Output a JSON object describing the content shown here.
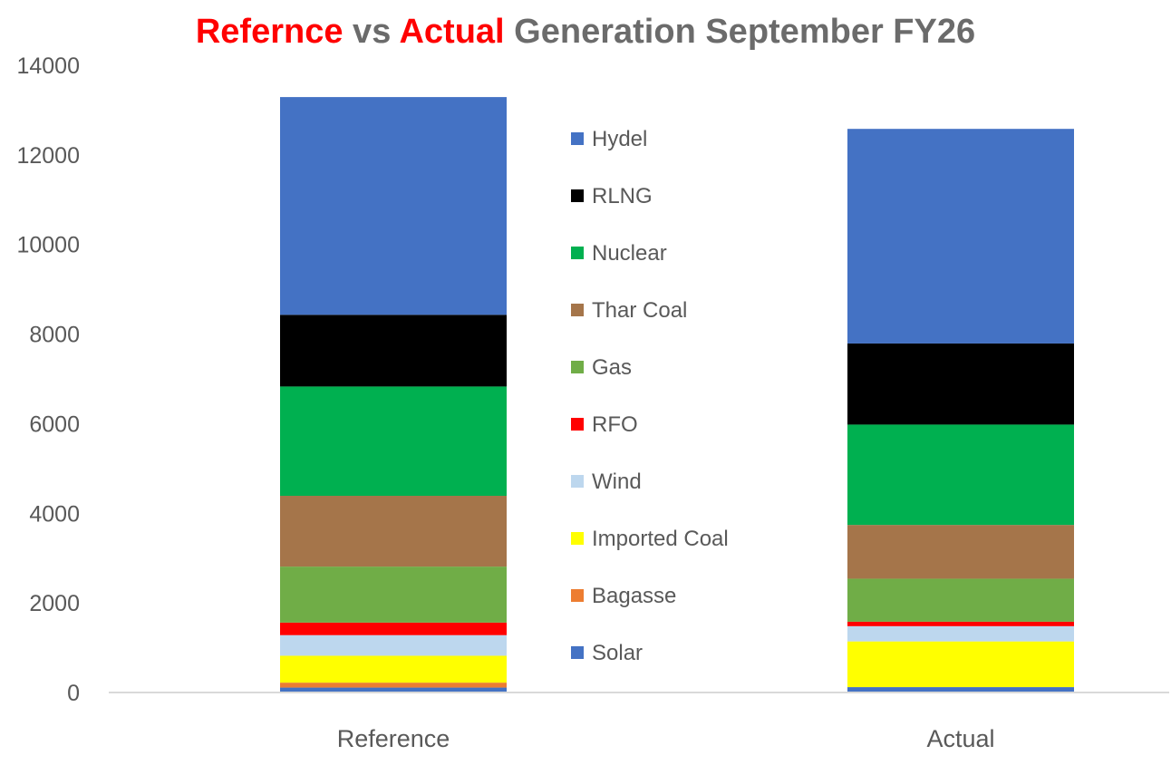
{
  "chart_data": {
    "type": "bar",
    "stacked": true,
    "title_parts": [
      {
        "text": "Refernce",
        "highlight": true
      },
      {
        "text": " vs ",
        "highlight": false
      },
      {
        "text": "Actual",
        "highlight": true
      },
      {
        "text": " Generation September FY26",
        "highlight": false
      }
    ],
    "categories": [
      "Reference",
      "Actual"
    ],
    "ylim": [
      0,
      14000
    ],
    "yticks": [
      0,
      2000,
      4000,
      6000,
      8000,
      10000,
      12000,
      14000
    ],
    "grid": false,
    "legend_position": "center",
    "series": [
      {
        "name": "Solar",
        "color": "#4472C4",
        "values": [
          110,
          120
        ]
      },
      {
        "name": "Bagasse",
        "color": "#ED7D31",
        "values": [
          110,
          0
        ]
      },
      {
        "name": "Imported Coal",
        "color": "#FFFF00",
        "values": [
          600,
          1020
        ]
      },
      {
        "name": "Wind",
        "color": "#BDD7EE",
        "values": [
          460,
          340
        ]
      },
      {
        "name": "RFO",
        "color": "#FF0000",
        "values": [
          280,
          100
        ]
      },
      {
        "name": "Gas",
        "color": "#70AD47",
        "values": [
          1250,
          960
        ]
      },
      {
        "name": "Thar Coal",
        "color": "#A5754A",
        "values": [
          1580,
          1200
        ]
      },
      {
        "name": "Nuclear",
        "color": "#00B050",
        "values": [
          2440,
          2240
        ]
      },
      {
        "name": "RLNG",
        "color": "#000000",
        "values": [
          1600,
          1810
        ]
      },
      {
        "name": "Hydel",
        "color": "#4472C4",
        "values": [
          4860,
          4790
        ]
      }
    ]
  }
}
